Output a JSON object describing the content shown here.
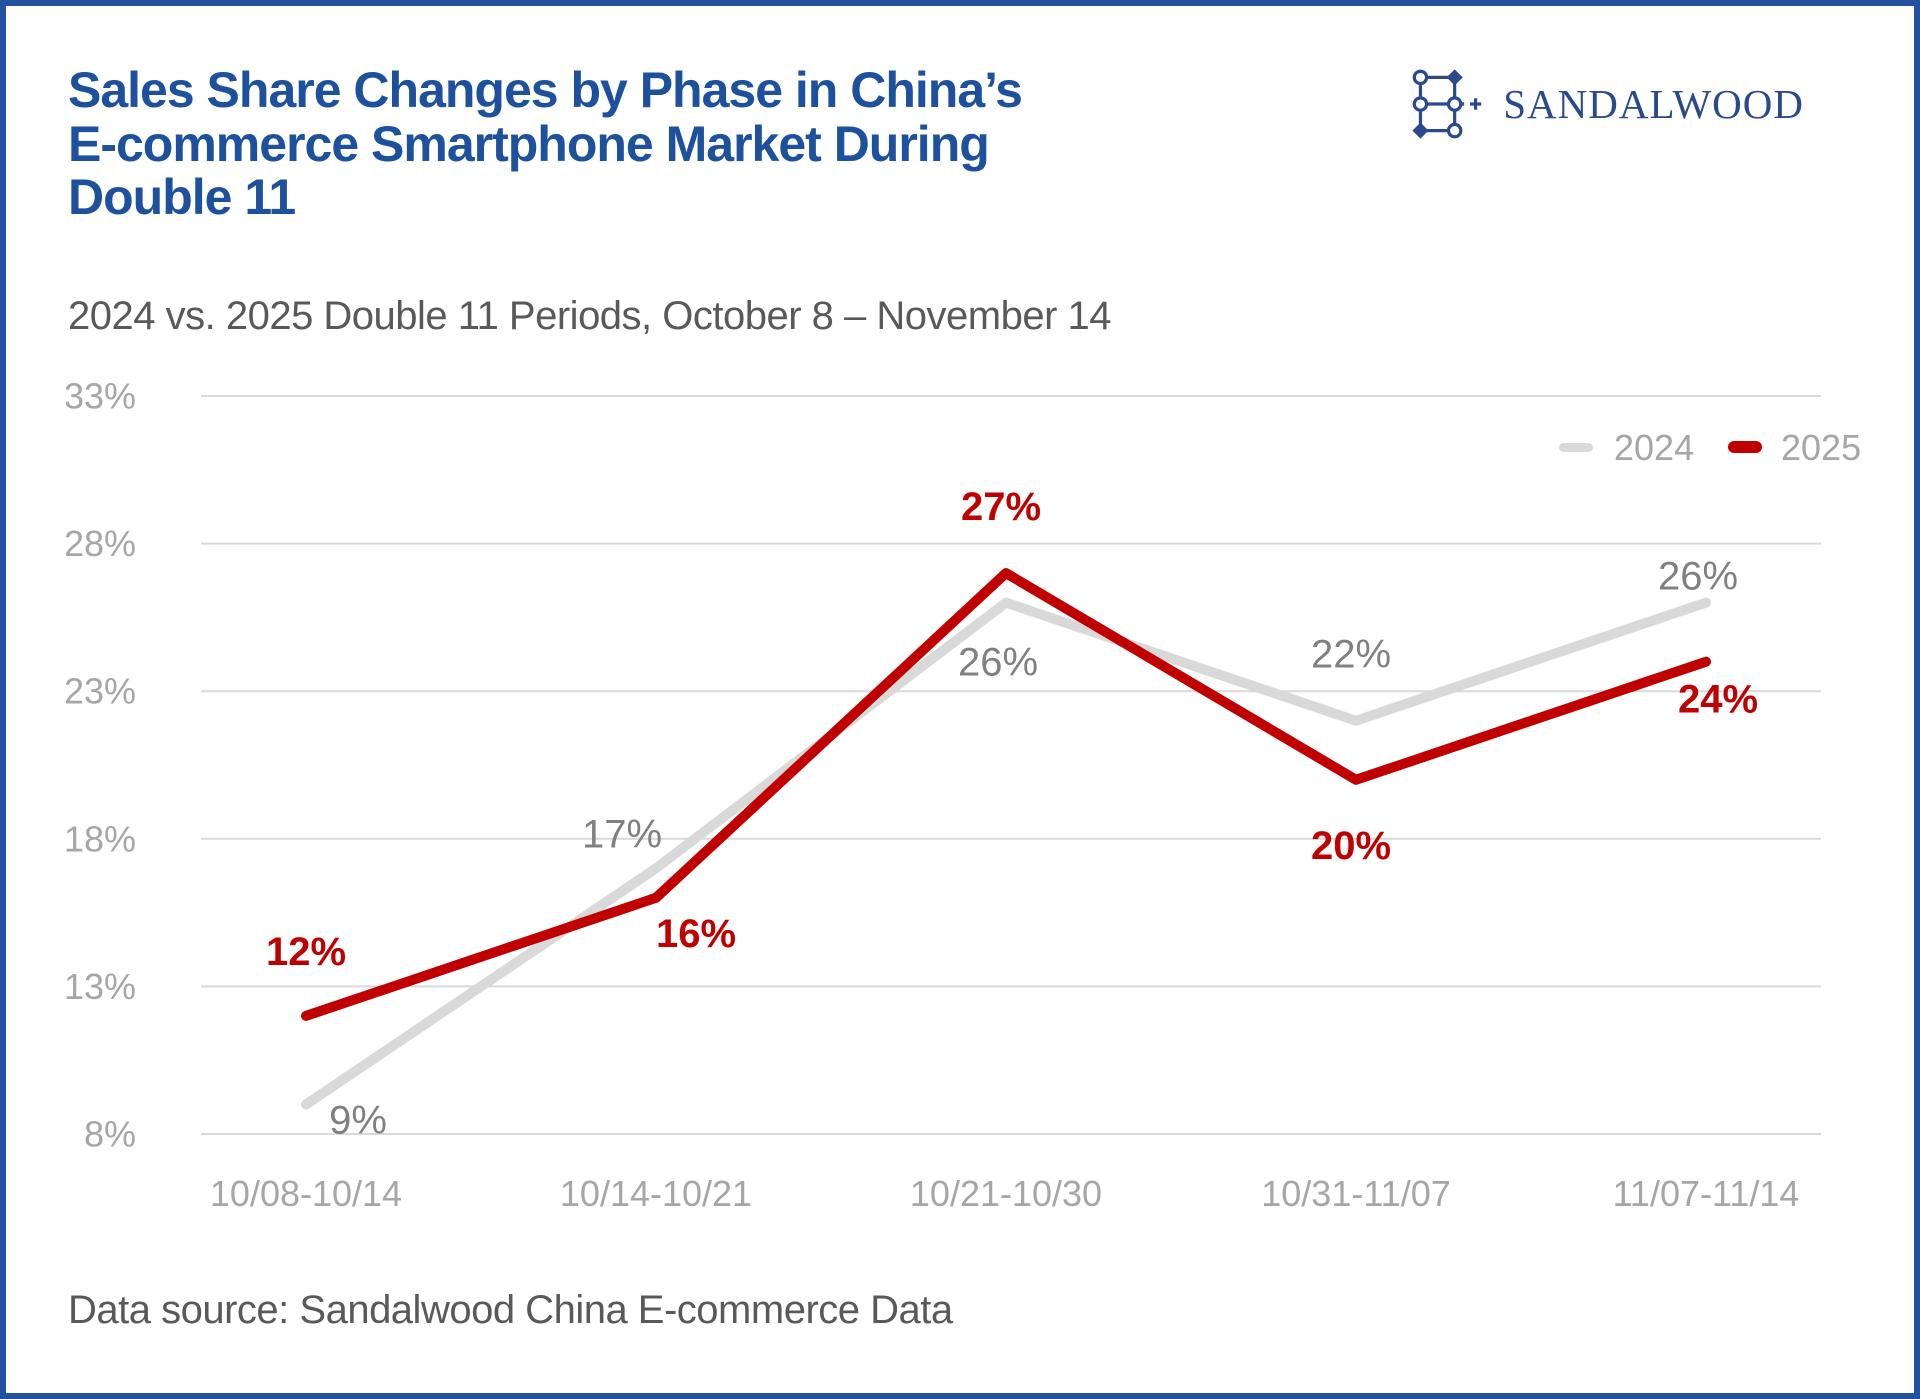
{
  "header": {
    "title_lines": [
      "Sales Share Changes by Phase in China’s",
      "E-commerce Smartphone Market During",
      "Double 11"
    ],
    "subtitle": "2024 vs. 2025 Double 11 Periods, October 8 – November 14",
    "logo": {
      "brand": "SANDALWOOD"
    }
  },
  "footer": {
    "data_source": "Data source: Sandalwood China E-commerce Data"
  },
  "colors": {
    "title_blue": "#1d519e",
    "border_navy": "#2353a0",
    "logo_navy": "#2b4a8e",
    "series_2024": "#d9d9d9",
    "series_2025": "#c00000",
    "axis_gray": "#a6a6a6",
    "grid_gray": "#d9d9d9",
    "gray_label": "#808080",
    "text_gray": "#595959"
  },
  "chart_data": {
    "type": "line",
    "title": "Sales Share Changes by Phase in China’s E-commerce Smartphone Market During Double 11",
    "subtitle": "2024 vs. 2025 Double 11 Periods, October 8 – November 14",
    "categories": [
      "10/08-10/14",
      "10/14-10/21",
      "10/21-10/30",
      "10/31-11/07",
      "11/07-11/14"
    ],
    "series": [
      {
        "name": "2024",
        "color": "#d9d9d9",
        "label_color": "#808080",
        "values": [
          9,
          17,
          26,
          22,
          26
        ],
        "labels": [
          "9%",
          "17%",
          "26%",
          "22%",
          "26%"
        ]
      },
      {
        "name": "2025",
        "color": "#c00000",
        "label_color": "#c00000",
        "values": [
          12,
          16,
          27,
          20,
          24
        ],
        "labels": [
          "12%",
          "16%",
          "27%",
          "20%",
          "24%"
        ]
      }
    ],
    "xlabel": "",
    "ylabel": "",
    "ylim": [
      8,
      33
    ],
    "y_ticks": [
      "33%",
      "28%",
      "23%",
      "18%",
      "13%",
      "8%"
    ],
    "y_tick_values": [
      33,
      28,
      23,
      18,
      13,
      8
    ],
    "grid": "horizontal",
    "legend_position": "top-right"
  }
}
